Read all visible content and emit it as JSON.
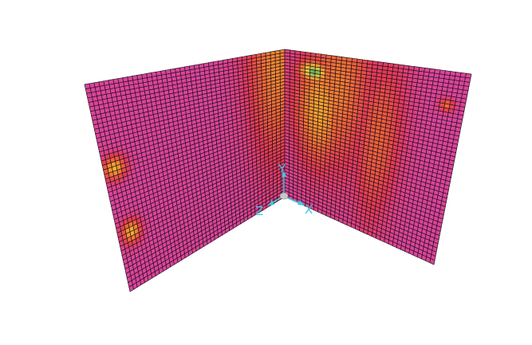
{
  "view": {
    "background": "#ffffff",
    "mesh_line_color": "#2a0f1e",
    "base_color": "#d8459a",
    "axis_color": "#3cc8e6",
    "origin_color": "#c8c8c8"
  },
  "axes": {
    "x_label": "X",
    "y_label": "Y",
    "z_label": "Z"
  },
  "color_scale": [
    "#d8459a",
    "#e33a55",
    "#ea6438",
    "#f09a2e",
    "#e8cf3a",
    "#58b86a"
  ],
  "mesh": {
    "left_panel": {
      "divisions_u": 42,
      "divisions_v": 46
    },
    "right_panel": {
      "divisions_u": 36,
      "divisions_v": 46
    }
  },
  "hotspots": {
    "left_panel": [
      {
        "u": 0.96,
        "v": 0.08,
        "w": 0.22,
        "h": 0.95,
        "level": 0.55
      },
      {
        "u": 0.88,
        "v": 0.05,
        "w": 0.14,
        "h": 0.7,
        "level": 0.35
      },
      {
        "u": 0.06,
        "v": 0.42,
        "w": 0.09,
        "h": 0.08,
        "level": 0.7
      },
      {
        "u": 0.08,
        "v": 0.74,
        "w": 0.08,
        "h": 0.08,
        "level": 0.7
      }
    ],
    "right_panel": [
      {
        "u": 0.16,
        "v": 0.12,
        "w": 0.12,
        "h": 0.1,
        "level": 1.0
      },
      {
        "u": 0.2,
        "v": 0.35,
        "w": 0.22,
        "h": 0.55,
        "level": 0.65
      },
      {
        "u": 0.3,
        "v": 0.2,
        "w": 0.28,
        "h": 0.75,
        "level": 0.5
      },
      {
        "u": 0.55,
        "v": 0.45,
        "w": 0.2,
        "h": 0.7,
        "level": 0.4
      },
      {
        "u": 0.9,
        "v": 0.18,
        "w": 0.06,
        "h": 0.05,
        "level": 0.45
      }
    ]
  }
}
